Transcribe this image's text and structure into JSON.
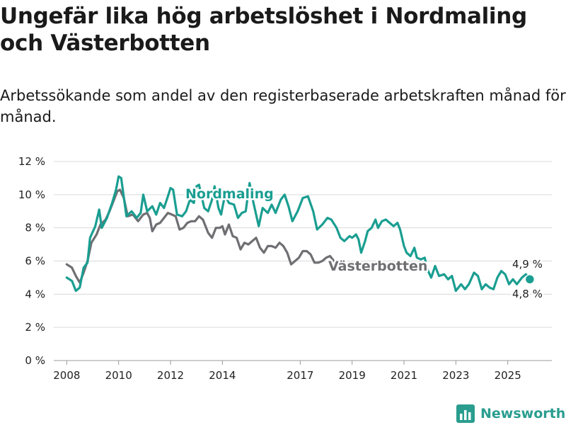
{
  "header": {
    "title": "Ungefär lika hög arbetslöshet i Nordmaling och Västerbotten",
    "subtitle": "Arbetssökande som andel av den registerbaserade arbetskraften månad för månad."
  },
  "colors": {
    "nordmaling": "#1a9e91",
    "vasterbotten": "#6f6f73",
    "grid": "#d9d9d9"
  },
  "brand": {
    "name": "Newsworthy",
    "icon": "bar-chart-logo-icon"
  },
  "chart_data": {
    "type": "line",
    "title": "Ungefär lika hög arbetslöshet i Nordmaling och Västerbotten",
    "xlabel": "",
    "ylabel": "",
    "xlim": [
      2007.5,
      2026.7
    ],
    "ylim": [
      0,
      12
    ],
    "yticks": [
      0,
      2,
      4,
      6,
      8,
      10,
      12
    ],
    "ytick_labels": [
      "0 %",
      "2 %",
      "4 %",
      "6 %",
      "8 %",
      "10 %",
      "12 %"
    ],
    "xticks": [
      2008,
      2010,
      2012,
      2014,
      2017,
      2019,
      2021,
      2023,
      2025
    ],
    "xtick_labels": [
      "2008",
      "2010",
      "2012",
      "2014",
      "2017",
      "2019",
      "2021",
      "2023",
      "2025"
    ],
    "grid": "horizontal",
    "series": [
      {
        "name": "Nordmaling",
        "label": "Nordmaling",
        "last_label": "4,9 %",
        "points": [
          [
            2008,
            5.0
          ],
          [
            2008.2,
            4.8
          ],
          [
            2008.35,
            4.2
          ],
          [
            2008.5,
            4.4
          ],
          [
            2008.65,
            5.6
          ],
          [
            2008.8,
            5.9
          ],
          [
            2008.9,
            7.4
          ],
          [
            2009.1,
            8.1
          ],
          [
            2009.25,
            9.1
          ],
          [
            2009.35,
            8.0
          ],
          [
            2009.55,
            8.6
          ],
          [
            2009.75,
            9.5
          ],
          [
            2009.9,
            10.3
          ],
          [
            2010.0,
            11.1
          ],
          [
            2010.1,
            11.0
          ],
          [
            2010.3,
            8.7
          ],
          [
            2010.5,
            9.0
          ],
          [
            2010.7,
            8.6
          ],
          [
            2010.85,
            8.9
          ],
          [
            2010.95,
            10.0
          ],
          [
            2011.1,
            9.0
          ],
          [
            2011.3,
            9.3
          ],
          [
            2011.45,
            8.8
          ],
          [
            2011.6,
            9.5
          ],
          [
            2011.75,
            9.2
          ],
          [
            2011.9,
            9.9
          ],
          [
            2012.0,
            10.4
          ],
          [
            2012.1,
            10.3
          ],
          [
            2012.25,
            8.8
          ],
          [
            2012.45,
            8.7
          ],
          [
            2012.6,
            9.0
          ],
          [
            2012.75,
            9.7
          ],
          [
            2012.9,
            9.5
          ],
          [
            2013.0,
            10.5
          ],
          [
            2013.1,
            10.6
          ],
          [
            2013.3,
            9.2
          ],
          [
            2013.45,
            9.0
          ],
          [
            2013.6,
            9.7
          ],
          [
            2013.7,
            10.5
          ],
          [
            2013.85,
            9.2
          ],
          [
            2013.95,
            8.8
          ],
          [
            2014.1,
            10.0
          ],
          [
            2014.25,
            9.5
          ],
          [
            2014.45,
            9.4
          ],
          [
            2014.6,
            8.6
          ],
          [
            2014.75,
            8.9
          ],
          [
            2014.9,
            9.0
          ],
          [
            2015.05,
            10.7
          ],
          [
            2015.2,
            9.5
          ],
          [
            2015.4,
            8.1
          ],
          [
            2015.55,
            9.2
          ],
          [
            2015.75,
            8.9
          ],
          [
            2015.9,
            9.4
          ],
          [
            2016.05,
            8.9
          ],
          [
            2016.25,
            9.7
          ],
          [
            2016.4,
            10.0
          ],
          [
            2016.55,
            9.3
          ],
          [
            2016.7,
            8.4
          ],
          [
            2016.9,
            9.0
          ],
          [
            2017.1,
            9.8
          ],
          [
            2017.3,
            9.9
          ],
          [
            2017.5,
            9.0
          ],
          [
            2017.65,
            7.9
          ],
          [
            2017.85,
            8.2
          ],
          [
            2018.05,
            8.6
          ],
          [
            2018.2,
            8.5
          ],
          [
            2018.4,
            8.0
          ],
          [
            2018.55,
            7.4
          ],
          [
            2018.7,
            7.2
          ],
          [
            2018.9,
            7.5
          ],
          [
            2019.0,
            7.4
          ],
          [
            2019.15,
            7.6
          ],
          [
            2019.25,
            7.3
          ],
          [
            2019.35,
            6.5
          ],
          [
            2019.5,
            7.2
          ],
          [
            2019.6,
            7.8
          ],
          [
            2019.75,
            8.0
          ],
          [
            2019.9,
            8.5
          ],
          [
            2020.0,
            8.0
          ],
          [
            2020.15,
            8.4
          ],
          [
            2020.3,
            8.5
          ],
          [
            2020.45,
            8.3
          ],
          [
            2020.6,
            8.1
          ],
          [
            2020.75,
            8.3
          ],
          [
            2020.85,
            7.9
          ],
          [
            2021.0,
            6.9
          ],
          [
            2021.1,
            6.5
          ],
          [
            2021.25,
            6.3
          ],
          [
            2021.4,
            6.8
          ],
          [
            2021.5,
            6.2
          ],
          [
            2021.65,
            6.1
          ],
          [
            2021.8,
            6.2
          ],
          [
            2021.9,
            5.5
          ],
          [
            2022.05,
            5.0
          ],
          [
            2022.2,
            5.7
          ],
          [
            2022.35,
            5.1
          ],
          [
            2022.55,
            5.2
          ],
          [
            2022.7,
            4.9
          ],
          [
            2022.85,
            5.1
          ],
          [
            2023.0,
            4.2
          ],
          [
            2023.2,
            4.6
          ],
          [
            2023.35,
            4.3
          ],
          [
            2023.5,
            4.6
          ],
          [
            2023.7,
            5.3
          ],
          [
            2023.85,
            5.1
          ],
          [
            2024.0,
            4.3
          ],
          [
            2024.15,
            4.6
          ],
          [
            2024.3,
            4.4
          ],
          [
            2024.45,
            4.3
          ],
          [
            2024.6,
            5.0
          ],
          [
            2024.75,
            5.4
          ],
          [
            2024.9,
            5.2
          ],
          [
            2025.05,
            4.6
          ],
          [
            2025.2,
            4.9
          ],
          [
            2025.35,
            4.6
          ],
          [
            2025.55,
            5.0
          ],
          [
            2025.7,
            5.2
          ],
          [
            2025.85,
            4.9
          ]
        ]
      },
      {
        "name": "Västerbotten",
        "label": "Västerbotten",
        "last_label": "4,8 %",
        "points": [
          [
            2008,
            5.8
          ],
          [
            2008.2,
            5.6
          ],
          [
            2008.35,
            5.1
          ],
          [
            2008.5,
            4.7
          ],
          [
            2008.65,
            5.3
          ],
          [
            2008.8,
            6.0
          ],
          [
            2008.95,
            7.1
          ],
          [
            2009.15,
            7.6
          ],
          [
            2009.3,
            8.2
          ],
          [
            2009.5,
            8.5
          ],
          [
            2009.65,
            9.0
          ],
          [
            2009.8,
            9.6
          ],
          [
            2009.95,
            10.2
          ],
          [
            2010.05,
            10.3
          ],
          [
            2010.2,
            9.8
          ],
          [
            2010.35,
            8.7
          ],
          [
            2010.55,
            8.8
          ],
          [
            2010.75,
            8.4
          ],
          [
            2010.95,
            8.8
          ],
          [
            2011.1,
            8.9
          ],
          [
            2011.2,
            8.6
          ],
          [
            2011.3,
            7.8
          ],
          [
            2011.45,
            8.2
          ],
          [
            2011.6,
            8.3
          ],
          [
            2011.75,
            8.6
          ],
          [
            2011.9,
            8.9
          ],
          [
            2012.05,
            8.8
          ],
          [
            2012.2,
            8.7
          ],
          [
            2012.35,
            7.9
          ],
          [
            2012.5,
            8.0
          ],
          [
            2012.65,
            8.3
          ],
          [
            2012.8,
            8.4
          ],
          [
            2012.95,
            8.4
          ],
          [
            2013.1,
            8.7
          ],
          [
            2013.25,
            8.5
          ],
          [
            2013.45,
            7.7
          ],
          [
            2013.6,
            7.4
          ],
          [
            2013.75,
            8.0
          ],
          [
            2013.9,
            8.0
          ],
          [
            2014.0,
            8.1
          ],
          [
            2014.1,
            7.6
          ],
          [
            2014.25,
            8.2
          ],
          [
            2014.4,
            7.5
          ],
          [
            2014.55,
            7.4
          ],
          [
            2014.7,
            6.7
          ],
          [
            2014.85,
            7.1
          ],
          [
            2015.0,
            7.0
          ],
          [
            2015.15,
            7.2
          ],
          [
            2015.3,
            7.4
          ],
          [
            2015.45,
            6.8
          ],
          [
            2015.6,
            6.5
          ],
          [
            2015.75,
            6.9
          ],
          [
            2015.9,
            6.9
          ],
          [
            2016.05,
            6.8
          ],
          [
            2016.2,
            7.1
          ],
          [
            2016.35,
            6.9
          ],
          [
            2016.5,
            6.5
          ],
          [
            2016.65,
            5.8
          ],
          [
            2016.8,
            6.0
          ],
          [
            2016.95,
            6.2
          ],
          [
            2017.1,
            6.6
          ],
          [
            2017.25,
            6.6
          ],
          [
            2017.4,
            6.4
          ],
          [
            2017.55,
            5.9
          ],
          [
            2017.7,
            5.9
          ],
          [
            2017.85,
            6.0
          ],
          [
            2018.0,
            6.2
          ],
          [
            2018.15,
            6.3
          ],
          [
            2018.3,
            6.0
          ]
        ]
      }
    ]
  }
}
